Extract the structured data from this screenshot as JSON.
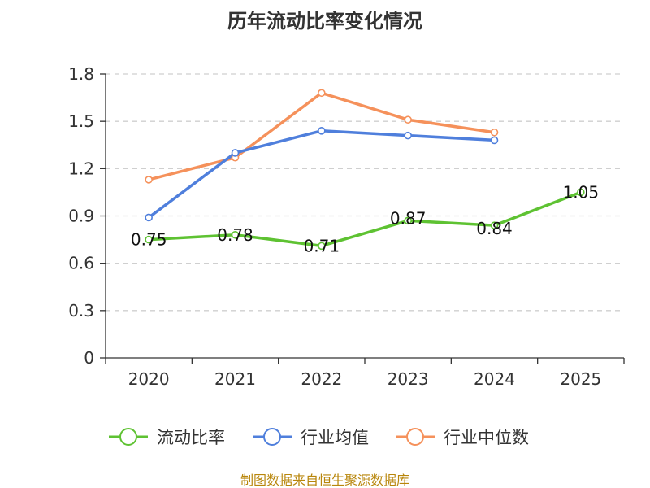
{
  "chart_data": {
    "type": "line",
    "title": "历年流动比率变化情况",
    "categories": [
      "2020",
      "2021",
      "2022",
      "2023",
      "2024",
      "2025"
    ],
    "ylim": [
      0,
      1.8
    ],
    "yticks": [
      "0",
      "0.3",
      "0.6",
      "0.9",
      "1.2",
      "1.5",
      "1.8"
    ],
    "grid": true,
    "legend_position": "bottom",
    "series": [
      {
        "name": "流动比率",
        "color": "#5ec232",
        "values": [
          0.75,
          0.78,
          0.71,
          0.87,
          0.84,
          1.05
        ],
        "labels": [
          "0.75",
          "0.78",
          "0.71",
          "0.87",
          "0.84",
          "1.05"
        ]
      },
      {
        "name": "行业均值",
        "color": "#4f7fdc",
        "values": [
          0.89,
          1.3,
          1.44,
          1.41,
          1.38,
          null
        ]
      },
      {
        "name": "行业中位数",
        "color": "#f5915b",
        "values": [
          1.13,
          1.27,
          1.68,
          1.51,
          1.43,
          null
        ]
      }
    ]
  },
  "source": "制图数据来自恒生聚源数据库"
}
